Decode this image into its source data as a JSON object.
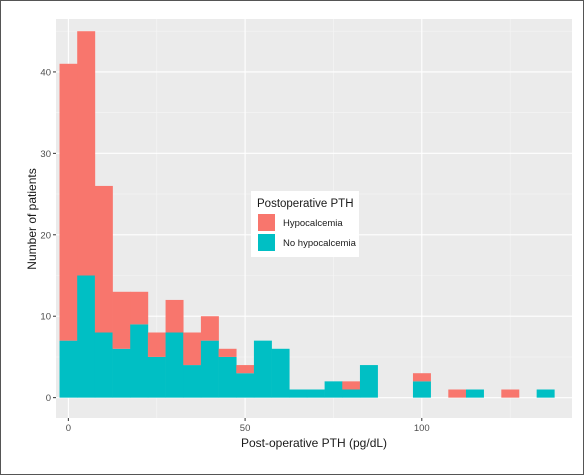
{
  "chart_data": {
    "type": "bar",
    "stacked": true,
    "xlabel": "Post-operative PTH (pg/dL)",
    "ylabel": "Number of patients",
    "xlim": [
      -3.5,
      142.5
    ],
    "ylim": [
      -2.5,
      46.5
    ],
    "x_ticks": [
      0,
      50,
      100
    ],
    "y_ticks": [
      0,
      10,
      20,
      30,
      40
    ],
    "grid": true,
    "bin_width": 5,
    "bin_centers": [
      0,
      5,
      10,
      15,
      20,
      25,
      30,
      35,
      40,
      45,
      50,
      55,
      60,
      65,
      70,
      75,
      80,
      85,
      90,
      95,
      100,
      105,
      110,
      115,
      120,
      125,
      130,
      135
    ],
    "series": [
      {
        "name": "No hypocalcemia",
        "color": "#00BFC4",
        "values": [
          7,
          15,
          8,
          6,
          9,
          5,
          8,
          4,
          7,
          5,
          3,
          7,
          6,
          1,
          1,
          2,
          1,
          4,
          0,
          0,
          2,
          0,
          0,
          1,
          0,
          0,
          0,
          1
        ]
      },
      {
        "name": "Hypocalcemia",
        "color": "#F8766D",
        "values": [
          34,
          30,
          18,
          7,
          4,
          3,
          4,
          4,
          3,
          1,
          1,
          0,
          0,
          0,
          0,
          0,
          1,
          0,
          0,
          0,
          1,
          0,
          1,
          0,
          0,
          1,
          0,
          0
        ]
      }
    ],
    "legend": {
      "title": "Postoperative PTH",
      "position": "center",
      "items": [
        "Hypocalcemia",
        "No hypocalcemia"
      ]
    }
  }
}
